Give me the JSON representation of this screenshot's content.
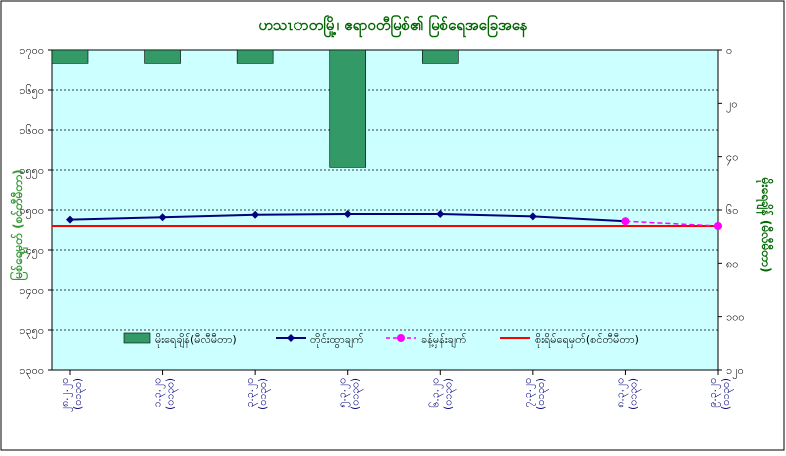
{
  "chart_data": {
    "type": "line",
    "title": "ဟသၤာတမြို့၊ ဧရာဝတီမြစ်၏ မြစ်ရေအခြေအနေ",
    "ylabel_left": "မြစ်ရေမှတ် (စင်တီမီတာ)",
    "ylabel_right": "မိုးရေချိန် (မီလီမီတာ)",
    "categories": [
      "၂၈.၂.၂၀ (၀၁၃၀)",
      "၁.၃.၂၀ (၀၁၃၀)",
      "၃.၃.၂၀ (၀၁၃၀)",
      "၅.၃.၂၀ (၀၁၃၀)",
      "၆.၃.၂၀ (၀၁၃၀)",
      "၇.၃.၂၀ (၀၁၃၀)",
      "၈.၃.၂၀ (၀၁၃၀)",
      "၉.၃.၂၀ (၀၁၃၀)"
    ],
    "y_left": {
      "min": 1300,
      "max": 1700,
      "step": 50,
      "tick_labels": [
        "၁၃၀၀",
        "၁၃၅၀",
        "၁၄၀၀",
        "၁၄၅၀",
        "၁၅၀၀",
        "၁၅၅၀",
        "၁၆၀၀",
        "၁၆၅၀",
        "၁၇၀၀"
      ]
    },
    "y_right": {
      "min": 0,
      "max": 120,
      "step": 20,
      "reversed": true,
      "tick_labels": [
        "၀",
        "၂၀",
        "၄၀",
        "၆၀",
        "၈၀",
        "၁၀၀",
        "၁၂၀"
      ]
    },
    "series": [
      {
        "name": "မိုးရေချိန်(မီလီမီတာ)",
        "kind": "bar",
        "axis": "right",
        "color": "#339966",
        "values": [
          5,
          5,
          5,
          44,
          5,
          null,
          null,
          null
        ]
      },
      {
        "name": "တိုင်းထွာချက်",
        "kind": "line",
        "axis": "left",
        "color": "#000080",
        "marker": "diamond",
        "values": [
          1488,
          1491,
          1494,
          1495,
          1495,
          1492,
          1486,
          null
        ]
      },
      {
        "name": "ခန့်မှန်းချက်",
        "kind": "line",
        "axis": "left",
        "color": "#ff00ff",
        "dash": true,
        "marker": "circle",
        "values": [
          null,
          null,
          null,
          null,
          null,
          null,
          1486,
          1480
        ]
      },
      {
        "name": "စိုးရိမ်ရေမှတ်(စင်တီမီတာ)",
        "kind": "refline",
        "axis": "left",
        "color": "#ff0000",
        "value": 1480
      }
    ],
    "grid": true,
    "legend_position": "bottom-inside",
    "colors": {
      "plot_background": "#ccffff",
      "title": "#006600",
      "left_axis_label": "#339933",
      "right_axis_label": "#006600",
      "x_tick_label": "#000080",
      "frame": "#000080"
    }
  }
}
